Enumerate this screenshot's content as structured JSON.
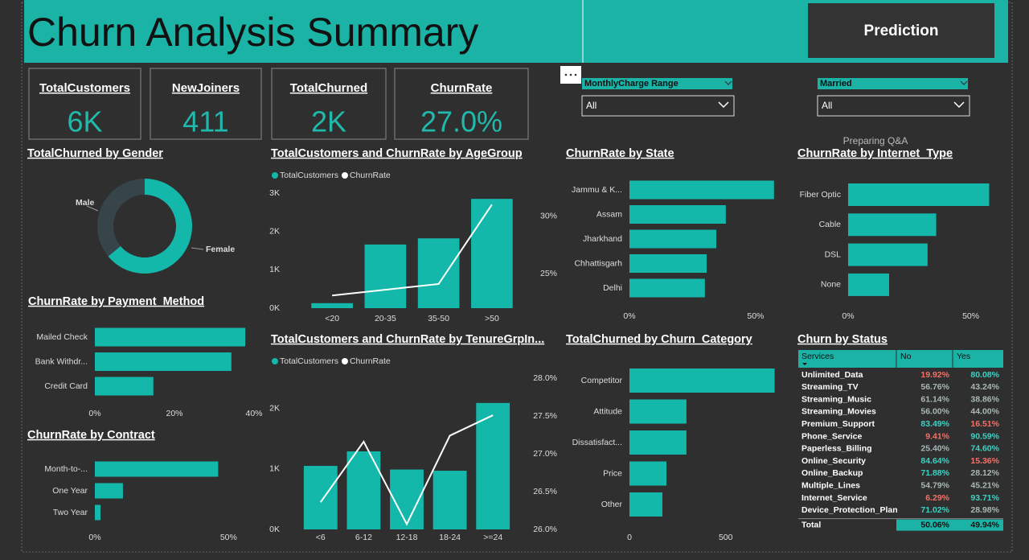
{
  "header": {
    "title": "Churn Analysis Summary",
    "button": "Prediction"
  },
  "cards": [
    {
      "label": "TotalCustomers",
      "value": "6K"
    },
    {
      "label": "NewJoiners",
      "value": "411"
    },
    {
      "label": "TotalChurned",
      "value": "2K"
    },
    {
      "label": "ChurnRate",
      "value": "27.0%"
    }
  ],
  "slicers": [
    {
      "label": "MonthlyCharge Range",
      "value": "All"
    },
    {
      "label": "Married",
      "value": "All"
    }
  ],
  "status_text": "Preparing Q&A",
  "chart_data": [
    {
      "type": "pie",
      "title": "TotalChurned by Gender",
      "categories": [
        "Female",
        "Male"
      ],
      "values": [
        64,
        36
      ],
      "colors": [
        "#14b8ab",
        "#374449"
      ]
    },
    {
      "type": "combo",
      "title": "TotalCustomers and ChurnRate by AgeGroup",
      "categories": [
        "<20",
        "20-35",
        "35-50",
        ">50"
      ],
      "series": [
        {
          "name": "TotalCustomers",
          "color": "#14b8ab",
          "values": [
            130,
            1660,
            1820,
            2850
          ]
        },
        {
          "name": "ChurnRate",
          "color": "#ffffff",
          "axis": "y2",
          "values": [
            23.1,
            23.6,
            24.1,
            31.0
          ]
        }
      ],
      "ylim": [
        0,
        3000
      ],
      "yticks": [
        {
          "value": 0,
          "label": "0K"
        },
        {
          "value": 1000,
          "label": "1K"
        },
        {
          "value": 2000,
          "label": "2K"
        },
        {
          "value": 3000,
          "label": "3K"
        }
      ],
      "y2lim": [
        22,
        32
      ],
      "y2ticks": [
        {
          "value": 25,
          "label": "25%"
        },
        {
          "value": 30,
          "label": "30%"
        }
      ]
    },
    {
      "type": "combo",
      "title": "TotalCustomers and ChurnRate by TenureGrpIn...",
      "categories": [
        "<6",
        "6-12",
        "12-18",
        "18-24",
        ">=24"
      ],
      "series": [
        {
          "name": "TotalCustomers",
          "color": "#14b8ab",
          "values": [
            1050,
            1290,
            990,
            970,
            2090
          ]
        },
        {
          "name": "ChurnRate",
          "color": "#ffffff",
          "axis": "y2",
          "values": [
            26.36,
            27.16,
            26.07,
            27.24,
            27.51
          ]
        }
      ],
      "ylim": [
        0,
        2500
      ],
      "yticks": [
        {
          "value": 0,
          "label": "0K"
        },
        {
          "value": 1000,
          "label": "1K"
        },
        {
          "value": 2000,
          "label": "2K"
        }
      ],
      "y2lim": [
        26,
        28
      ],
      "y2ticks": [
        {
          "value": 26,
          "label": "26.0%"
        },
        {
          "value": 26.5,
          "label": "26.5%"
        },
        {
          "value": 27,
          "label": "27.0%"
        },
        {
          "value": 27.5,
          "label": "27.5%"
        },
        {
          "value": 28,
          "label": "28.0%"
        }
      ]
    },
    {
      "type": "barh",
      "title": "ChurnRate by State",
      "categories": [
        "Jammu & K...",
        "Assam",
        "Jharkhand",
        "Chhattisgarh",
        "Delhi"
      ],
      "values": [
        57.3,
        38.2,
        34.4,
        30.6,
        29.9
      ],
      "color": "#14b8ab",
      "xlim": [
        0,
        58
      ],
      "xticks": [
        {
          "value": 0,
          "label": "0%"
        },
        {
          "value": 50,
          "label": "50%"
        }
      ]
    },
    {
      "type": "barh",
      "title": "ChurnRate by Internet_Type",
      "categories": [
        "Fiber Optic",
        "Cable",
        "DSL",
        "None"
      ],
      "values": [
        57.5,
        35.9,
        32.4,
        16.7
      ],
      "color": "#14b8ab",
      "xlim": [
        0,
        58
      ],
      "xticks": [
        {
          "value": 0,
          "label": "0%"
        },
        {
          "value": 50,
          "label": "50%"
        }
      ]
    },
    {
      "type": "barh",
      "title": "ChurnRate by Payment_Method",
      "categories": [
        "Mailed Check",
        "Bank Withdr...",
        "Credit Card"
      ],
      "values": [
        37.8,
        34.3,
        14.7
      ],
      "color": "#14b8ab",
      "xlim": [
        0,
        40
      ],
      "xticks": [
        {
          "value": 0,
          "label": "0%"
        },
        {
          "value": 20,
          "label": "20%"
        },
        {
          "value": 40,
          "label": "40%"
        }
      ]
    },
    {
      "type": "barh",
      "title": "ChurnRate by Contract",
      "categories": [
        "Month-to-...",
        "One Year",
        "Two Year"
      ],
      "values": [
        46.1,
        10.5,
        2.1
      ],
      "color": "#14b8ab",
      "xlim": [
        0,
        55
      ],
      "xticks": [
        {
          "value": 0,
          "label": "0%"
        },
        {
          "value": 50,
          "label": "50%"
        }
      ]
    },
    {
      "type": "barh",
      "title": "TotalChurned by Churn_Category",
      "categories": [
        "Competitor",
        "Attitude",
        "Dissatisfact...",
        "Price",
        "Other"
      ],
      "values": [
        754,
        296,
        296,
        192,
        171
      ],
      "color": "#14b8ab",
      "xlim": [
        0,
        760
      ],
      "xticks": [
        0,
        500
      ]
    }
  ],
  "table": {
    "title": "Churn by Status",
    "columns": [
      "Services",
      "No",
      "Yes"
    ],
    "rows": [
      [
        "Unlimited_Data",
        "19.92%",
        "80.08%"
      ],
      [
        "Streaming_TV",
        "56.76%",
        "43.24%"
      ],
      [
        "Streaming_Music",
        "61.14%",
        "38.86%"
      ],
      [
        "Streaming_Movies",
        "56.00%",
        "44.00%"
      ],
      [
        "Premium_Support",
        "83.49%",
        "16.51%"
      ],
      [
        "Phone_Service",
        "9.41%",
        "90.59%"
      ],
      [
        "Paperless_Billing",
        "25.40%",
        "74.60%"
      ],
      [
        "Online_Security",
        "84.64%",
        "15.36%"
      ],
      [
        "Online_Backup",
        "71.88%",
        "28.12%"
      ],
      [
        "Multiple_Lines",
        "54.79%",
        "45.21%"
      ],
      [
        "Internet_Service",
        "6.29%",
        "93.71%"
      ],
      [
        "Device_Protection_Plan",
        "71.02%",
        "28.98%"
      ]
    ],
    "total": [
      "Total",
      "50.06%",
      "49.94%"
    ]
  }
}
